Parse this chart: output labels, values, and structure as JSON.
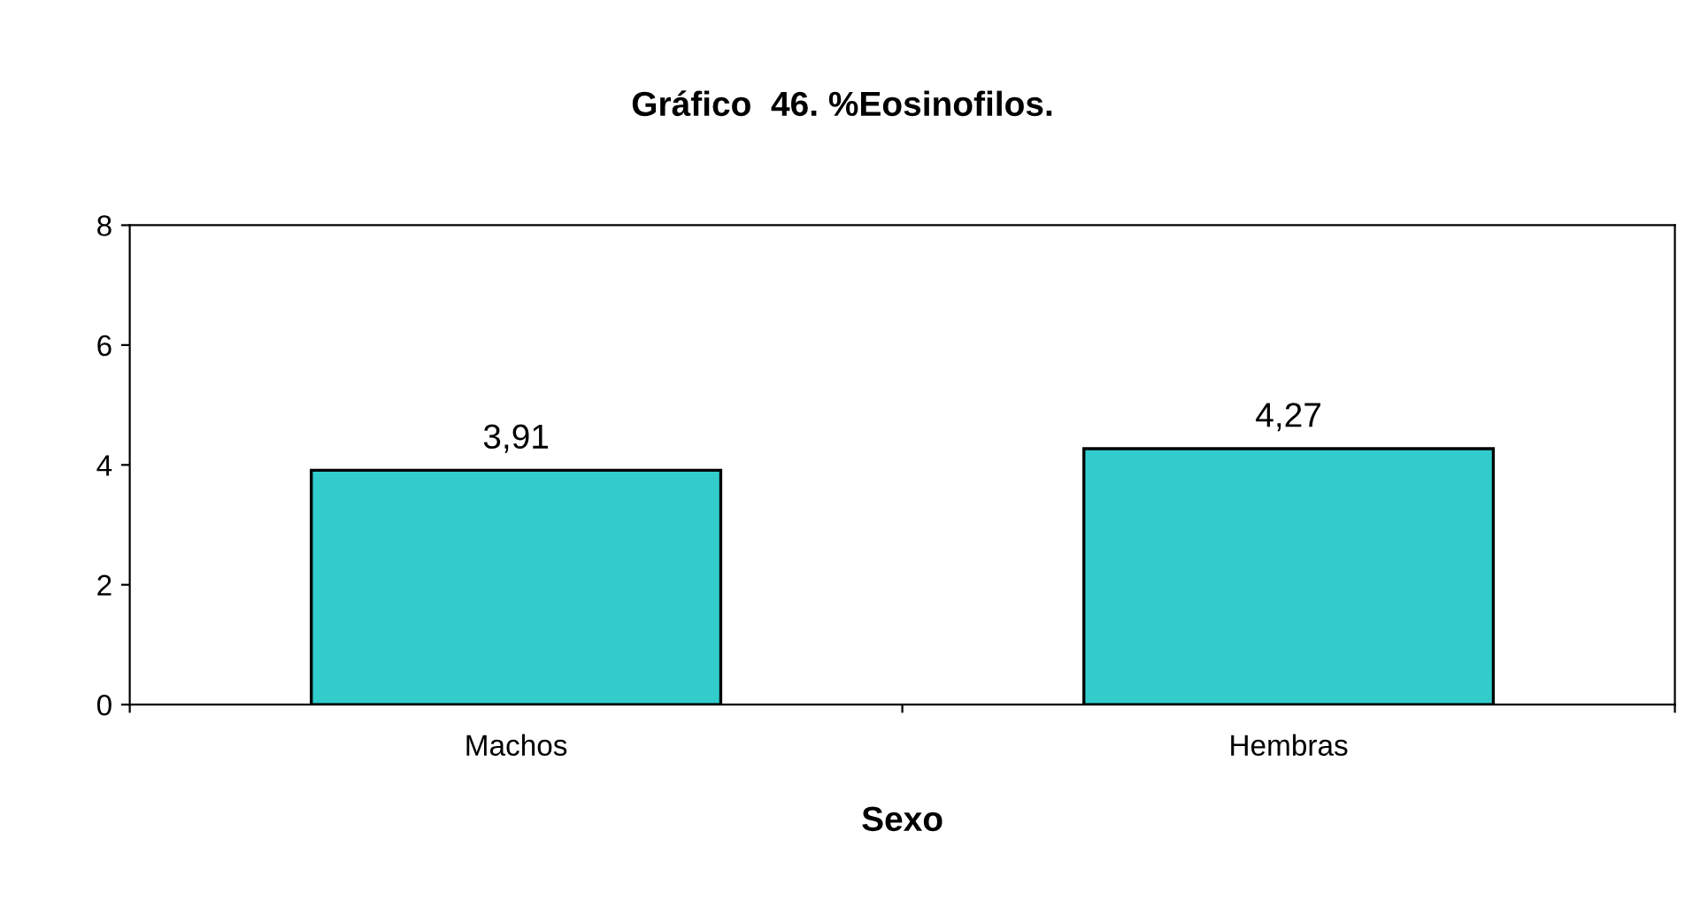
{
  "chart_data": {
    "type": "bar",
    "title": "Gráfico  46. %Eosinofilos.",
    "xlabel": "Sexo",
    "categories": [
      "Machos",
      "Hembras"
    ],
    "values": [
      3.91,
      4.27
    ],
    "color": "#33cccc",
    "value_labels": [
      "3,91",
      "4,27"
    ],
    "ylim": [
      0,
      8
    ],
    "yticks": [
      0,
      2,
      4,
      6,
      8
    ],
    "grid": false,
    "legend": false
  }
}
